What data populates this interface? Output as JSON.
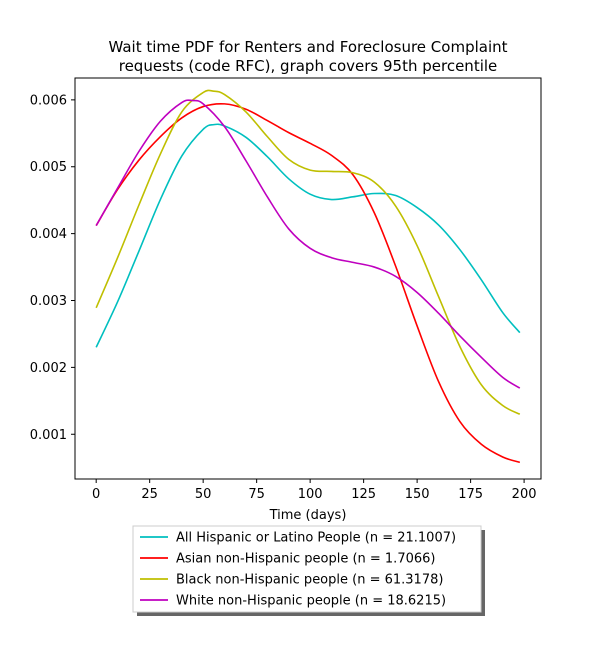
{
  "chart_data": {
    "type": "line",
    "title_line1": "Wait time PDF for Renters and Foreclosure Complaint",
    "title_line2": "requests (code RFC), graph covers 95th percentile",
    "xlabel": "Time (days)",
    "ylabel": "",
    "xlim": [
      -9.9,
      207.9
    ],
    "ylim": [
      0.000331,
      0.006327
    ],
    "xticks": [
      0,
      25,
      50,
      75,
      100,
      125,
      150,
      175,
      200
    ],
    "yticks": [
      0.001,
      0.002,
      0.003,
      0.004,
      0.005,
      0.006
    ],
    "ytick_labels": [
      "0.001",
      "0.002",
      "0.003",
      "0.004",
      "0.005",
      "0.006"
    ],
    "grid": false,
    "legend_position": "bottom-center, below plot",
    "series": [
      {
        "name": "All Hispanic or Latino People (n = 21.1007)",
        "color": "#00bfbf",
        "x": [
          0,
          10,
          20,
          30,
          40,
          50,
          55,
          60,
          70,
          80,
          90,
          100,
          110,
          120,
          130,
          140,
          150,
          160,
          170,
          180,
          190,
          198
        ],
        "y": [
          0.0023,
          0.00298,
          0.00374,
          0.00451,
          0.00516,
          0.00556,
          0.00563,
          0.00561,
          0.00544,
          0.00515,
          0.00482,
          0.00459,
          0.00451,
          0.00455,
          0.0046,
          0.00457,
          0.00439,
          0.00413,
          0.00376,
          0.00331,
          0.00282,
          0.00252
        ]
      },
      {
        "name": "Asian non-Hispanic people (n = 1.7066)",
        "color": "#ff0000",
        "x": [
          0,
          10,
          20,
          30,
          40,
          50,
          60,
          70,
          80,
          90,
          100,
          110,
          120,
          130,
          140,
          150,
          160,
          170,
          180,
          190,
          198
        ],
        "y": [
          0.00412,
          0.00466,
          0.0051,
          0.00545,
          0.00573,
          0.0059,
          0.00594,
          0.00586,
          0.00569,
          0.00551,
          0.00535,
          0.00517,
          0.00488,
          0.00431,
          0.00351,
          0.00262,
          0.00179,
          0.00119,
          0.00085,
          0.00066,
          0.00058
        ]
      },
      {
        "name": "Black non-Hispanic people (n = 61.3178)",
        "color": "#bfbf00",
        "x": [
          0,
          10,
          20,
          30,
          40,
          50,
          55,
          60,
          70,
          80,
          90,
          100,
          110,
          120,
          130,
          140,
          150,
          160,
          170,
          180,
          190,
          198
        ],
        "y": [
          0.00289,
          0.00364,
          0.00443,
          0.00519,
          0.00582,
          0.00611,
          0.00613,
          0.00608,
          0.00582,
          0.00545,
          0.00511,
          0.00495,
          0.00493,
          0.00491,
          0.00477,
          0.00441,
          0.00382,
          0.00306,
          0.00231,
          0.00174,
          0.00143,
          0.0013
        ]
      },
      {
        "name": "White non-Hispanic people (n = 18.6215)",
        "color": "#bf00bf",
        "x": [
          0,
          10,
          20,
          30,
          40,
          45,
          50,
          60,
          70,
          80,
          90,
          100,
          110,
          120,
          130,
          140,
          150,
          160,
          170,
          180,
          190,
          198
        ],
        "y": [
          0.00412,
          0.00468,
          0.00523,
          0.00568,
          0.00596,
          0.00599,
          0.00594,
          0.0056,
          0.00509,
          0.00455,
          0.00407,
          0.00378,
          0.00364,
          0.00357,
          0.0035,
          0.00336,
          0.00312,
          0.00281,
          0.00247,
          0.00215,
          0.00185,
          0.00169
        ]
      }
    ]
  }
}
